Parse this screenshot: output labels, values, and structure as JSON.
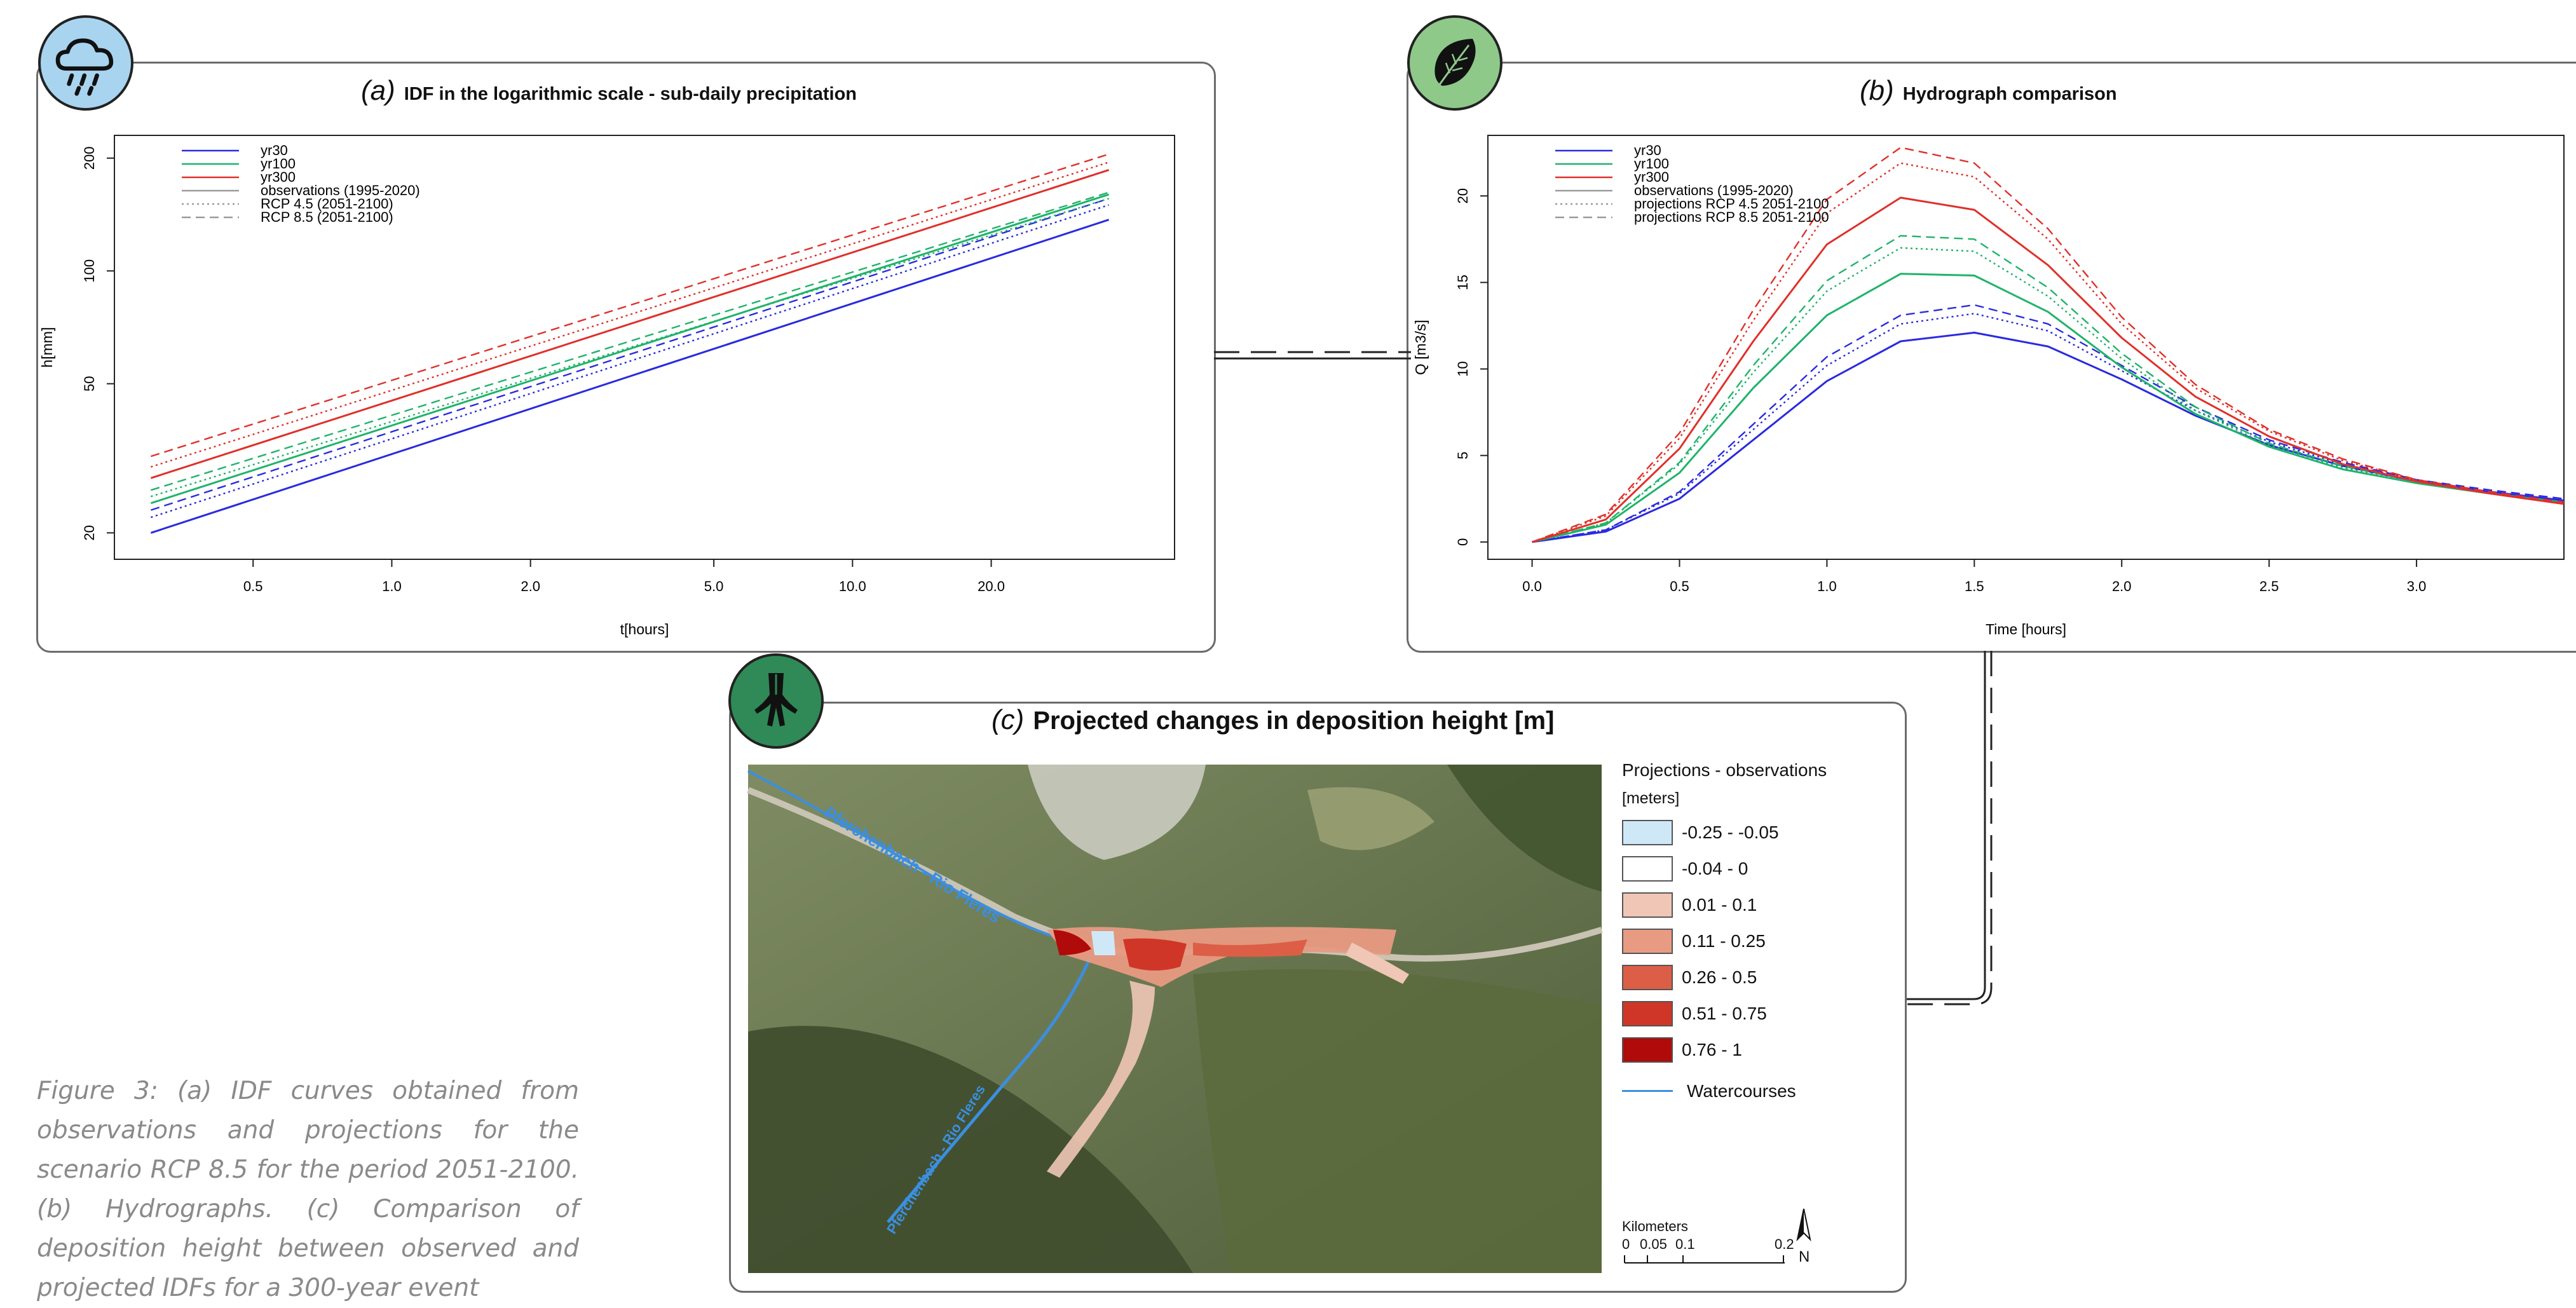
{
  "panels": {
    "a": {
      "tag": "(a)",
      "title": "IDF in the logarithmic scale - sub-daily precipitation",
      "icon": "rain-cloud-icon",
      "icon_bg": "#a8d4ef"
    },
    "b": {
      "tag": "(b)",
      "title": "Hydrograph comparison",
      "icon": "leaf-icon",
      "icon_bg": "#8ec98a"
    },
    "c": {
      "tag": "(c)",
      "title": "Projected changes in deposition height [m]",
      "icon": "roots-icon",
      "icon_bg": "#2f8a58"
    }
  },
  "caption": "Figure 3: (a) IDF curves obtained from observations and projections for the scenario RCP 8.5 for the period 2051-2100. (b) Hydrographs. (c) Comparison of deposition height between observed and projected IDFs for a 300-year event",
  "colors": {
    "yr30": "#2a2ae0",
    "yr100": "#1fb36a",
    "yr300": "#e0302a",
    "obs": "#9a9a9a"
  },
  "chart_data": [
    {
      "type": "line",
      "title": "IDF in the logarithmic scale - sub-daily precipitation",
      "xlabel": "t[hours]",
      "ylabel": "h[mm]",
      "log_x": true,
      "log_y": true,
      "xlim": [
        0.25,
        50
      ],
      "ylim": [
        17,
        230
      ],
      "xticks": [
        0.5,
        1.0,
        2.0,
        5.0,
        10.0,
        20.0
      ],
      "xtick_labels": [
        "0.5",
        "1.0",
        "2.0",
        "5.0",
        "10.0",
        "20.0"
      ],
      "yticks": [
        20,
        50,
        100,
        200
      ],
      "ytick_labels": [
        "20",
        "50",
        "100",
        "200"
      ],
      "legend": {
        "position": "top-left",
        "entries": [
          {
            "label": "yr30",
            "color": "#2a2ae0",
            "style": "solid"
          },
          {
            "label": "yr100",
            "color": "#1fb36a",
            "style": "solid"
          },
          {
            "label": "yr300",
            "color": "#e0302a",
            "style": "solid"
          },
          {
            "label": "observations (1995-2020)",
            "color": "#9a9a9a",
            "style": "solid"
          },
          {
            "label": "RCP 4.5 (2051-2100)",
            "color": "#9a9a9a",
            "style": "dotted"
          },
          {
            "label": "RCP 8.5 (2051-2100)",
            "color": "#9a9a9a",
            "style": "dashed"
          }
        ]
      },
      "series": [
        {
          "color": "#2a2ae0",
          "style": "solid",
          "x": [
            0.3,
            36
          ],
          "y": [
            20,
            137
          ]
        },
        {
          "color": "#2a2ae0",
          "style": "dotted",
          "x": [
            0.3,
            36
          ],
          "y": [
            22,
            150
          ]
        },
        {
          "color": "#2a2ae0",
          "style": "dashed",
          "x": [
            0.3,
            36
          ],
          "y": [
            23,
            156
          ]
        },
        {
          "color": "#1fb36a",
          "style": "solid",
          "x": [
            0.3,
            36
          ],
          "y": [
            24,
            160
          ]
        },
        {
          "color": "#1fb36a",
          "style": "dotted",
          "x": [
            0.3,
            36
          ],
          "y": [
            25,
            156
          ]
        },
        {
          "color": "#1fb36a",
          "style": "dashed",
          "x": [
            0.3,
            36
          ],
          "y": [
            26,
            162
          ]
        },
        {
          "color": "#e0302a",
          "style": "solid",
          "x": [
            0.3,
            36
          ],
          "y": [
            28,
            186
          ]
        },
        {
          "color": "#e0302a",
          "style": "dotted",
          "x": [
            0.3,
            36
          ],
          "y": [
            30,
            195
          ]
        },
        {
          "color": "#e0302a",
          "style": "dashed",
          "x": [
            0.3,
            36
          ],
          "y": [
            32,
            205
          ]
        }
      ]
    },
    {
      "type": "line",
      "title": "Hydrograph comparison",
      "xlabel": "Time [hours]",
      "ylabel": "Q [m3/s]",
      "xlim": [
        -0.15,
        3.5
      ],
      "ylim": [
        -1,
        23.5
      ],
      "xticks": [
        0.0,
        0.5,
        1.0,
        1.5,
        2.0,
        2.5,
        3.0
      ],
      "xtick_labels": [
        "0.0",
        "0.5",
        "1.0",
        "1.5",
        "2.0",
        "2.5",
        "3.0"
      ],
      "yticks": [
        0,
        5,
        10,
        15,
        20
      ],
      "ytick_labels": [
        "0",
        "5",
        "10",
        "15",
        "20"
      ],
      "legend": {
        "position": "top-left",
        "entries": [
          {
            "label": "yr30",
            "color": "#2a2ae0",
            "style": "solid"
          },
          {
            "label": "yr100",
            "color": "#1fb36a",
            "style": "solid"
          },
          {
            "label": "yr300",
            "color": "#e0302a",
            "style": "solid"
          },
          {
            "label": "observations (1995-2020)",
            "color": "#9a9a9a",
            "style": "solid"
          },
          {
            "label": "projections RCP 4.5 2051-2100",
            "color": "#9a9a9a",
            "style": "dotted"
          },
          {
            "label": "projections RCP 8.5 2051-2100",
            "color": "#9a9a9a",
            "style": "dashed"
          }
        ]
      },
      "x": [
        0.0,
        0.25,
        0.5,
        0.75,
        1.0,
        1.25,
        1.5,
        1.75,
        2.0,
        2.25,
        2.5,
        2.75,
        3.0,
        3.25,
        3.5
      ],
      "series": [
        {
          "color": "#2a2ae0",
          "style": "solid",
          "y": [
            0,
            0.6,
            2.5,
            5.9,
            9.3,
            11.6,
            12.1,
            11.3,
            9.4,
            7.3,
            5.6,
            4.4,
            3.5,
            2.9,
            2.4
          ]
        },
        {
          "color": "#2a2ae0",
          "style": "dotted",
          "y": [
            0,
            0.7,
            2.8,
            6.5,
            10.2,
            12.6,
            13.2,
            12.2,
            9.9,
            7.6,
            5.8,
            4.5,
            3.6,
            2.9,
            2.4
          ]
        },
        {
          "color": "#2a2ae0",
          "style": "dashed",
          "y": [
            0,
            0.7,
            2.9,
            6.8,
            10.7,
            13.1,
            13.7,
            12.6,
            10.2,
            7.8,
            5.9,
            4.6,
            3.6,
            3.0,
            2.5
          ]
        },
        {
          "color": "#1fb36a",
          "style": "solid",
          "y": [
            0,
            1.0,
            4.0,
            8.9,
            13.1,
            15.5,
            15.4,
            13.3,
            10.1,
            7.4,
            5.5,
            4.2,
            3.4,
            2.8,
            2.3
          ]
        },
        {
          "color": "#1fb36a",
          "style": "dotted",
          "y": [
            0,
            1.1,
            4.5,
            9.8,
            14.5,
            17.0,
            16.8,
            14.2,
            10.6,
            7.6,
            5.6,
            4.3,
            3.4,
            2.8,
            2.3
          ]
        },
        {
          "color": "#1fb36a",
          "style": "dashed",
          "y": [
            0,
            1.1,
            4.6,
            10.2,
            15.1,
            17.7,
            17.5,
            14.7,
            10.9,
            7.8,
            5.7,
            4.4,
            3.5,
            2.8,
            2.3
          ]
        },
        {
          "color": "#e0302a",
          "style": "solid",
          "y": [
            0,
            1.3,
            5.4,
            11.6,
            17.2,
            19.9,
            19.2,
            16.0,
            11.8,
            8.4,
            6.1,
            4.5,
            3.5,
            2.8,
            2.2
          ]
        },
        {
          "color": "#e0302a",
          "style": "dotted",
          "y": [
            0,
            1.5,
            6.0,
            12.8,
            19.0,
            21.9,
            21.1,
            17.5,
            12.6,
            8.9,
            6.4,
            4.7,
            3.6,
            2.8,
            2.2
          ]
        },
        {
          "color": "#e0302a",
          "style": "dashed",
          "y": [
            0,
            1.6,
            6.3,
            13.4,
            19.8,
            22.8,
            21.9,
            18.1,
            13.0,
            9.1,
            6.5,
            4.8,
            3.6,
            2.9,
            2.3
          ]
        }
      ]
    }
  ],
  "map": {
    "labels": [
      "Pferchenbach - Rio Fleres",
      "Pferchenbach - Rio Fleres"
    ],
    "legend_title": "Projections - observations",
    "legend_unit": "[meters]",
    "classes": [
      {
        "label": "-0.25 - -0.05",
        "color": "#cfe8f7"
      },
      {
        "label": "-0.04 - 0",
        "color": "#ffffff"
      },
      {
        "label": "0.01 - 0.1",
        "color": "#f0c6b6"
      },
      {
        "label": "0.11 - 0.25",
        "color": "#e89a82"
      },
      {
        "label": "0.26 - 0.5",
        "color": "#dd5e46"
      },
      {
        "label": "0.51 - 0.75",
        "color": "#d03628"
      },
      {
        "label": "0.76 - 1",
        "color": "#b00a0a"
      }
    ],
    "watercourses_label": "Watercourses",
    "watercourses_color": "#3b8fe0",
    "scale_title": "Kilometers",
    "scale_ticks": [
      "0",
      "0.05",
      "0.1",
      "0.2"
    ],
    "north": "N"
  }
}
